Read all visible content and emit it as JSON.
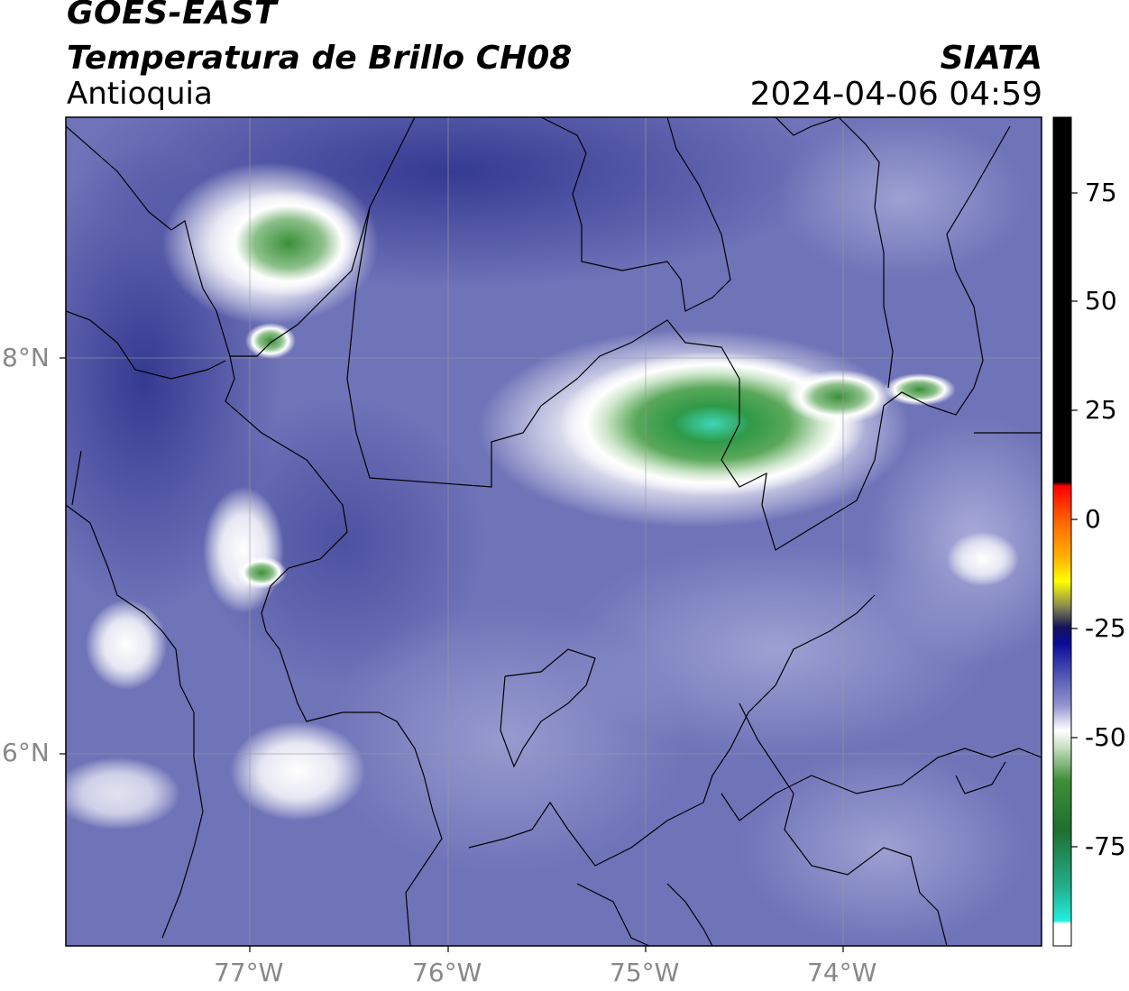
{
  "header": {
    "title_line1": "GOES-EAST",
    "title_line2": "Temperatura de Brillo CH08",
    "region": "Antioquia",
    "agency": "SIATA",
    "datetime": "2024-04-06 04:59"
  },
  "axes": {
    "lat_labels": [
      "8°N",
      "6°N"
    ],
    "lon_labels": [
      "77°W",
      "76°W",
      "75°W",
      "74°W"
    ]
  },
  "colorbar": {
    "ticks": [
      "75",
      "50",
      "25",
      "0",
      "-25",
      "-50",
      "-75"
    ]
  },
  "colors": {
    "background_field": "#6f73b8",
    "warm_dark": "#383c95",
    "cold_white": "#ffffff",
    "cold_green": "#3a8f3a",
    "coldest_cyan": "#3fd6b8"
  }
}
